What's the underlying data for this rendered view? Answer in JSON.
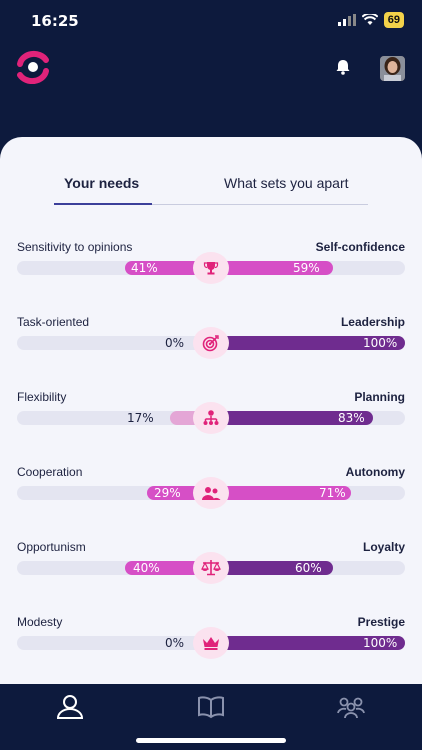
{
  "status": {
    "time": "16:25",
    "battery": "69"
  },
  "tabs": [
    {
      "label": "Your needs",
      "active": true
    },
    {
      "label": "What sets you apart",
      "active": false
    }
  ],
  "needs": [
    {
      "left_label": "Sensitivity to opinions",
      "right_label": "Self-confidence",
      "left_pct": "41%",
      "right_pct": "59%",
      "left_value": 41,
      "right_value": 59,
      "icon": "trophy-icon"
    },
    {
      "left_label": "Task-oriented",
      "right_label": "Leadership",
      "left_pct": "0%",
      "right_pct": "100%",
      "left_value": 0,
      "right_value": 100,
      "icon": "target-icon"
    },
    {
      "left_label": "Flexibility",
      "right_label": "Planning",
      "left_pct": "17%",
      "right_pct": "83%",
      "left_value": 17,
      "right_value": 83,
      "icon": "hierarchy-icon"
    },
    {
      "left_label": "Cooperation",
      "right_label": "Autonomy",
      "left_pct": "29%",
      "right_pct": "71%",
      "left_value": 29,
      "right_value": 71,
      "icon": "team-icon"
    },
    {
      "left_label": "Opportunism",
      "right_label": "Loyalty",
      "left_pct": "40%",
      "right_pct": "60%",
      "left_value": 40,
      "right_value": 60,
      "icon": "scales-icon"
    },
    {
      "left_label": "Modesty",
      "right_label": "Prestige",
      "left_pct": "0%",
      "right_pct": "100%",
      "left_value": 0,
      "right_value": 100,
      "icon": "crown-icon"
    }
  ],
  "colors": {
    "background": "#0d1a3d",
    "magenta": "#d64fc6",
    "purple": "#6f2c8f",
    "light_pink": "#e4a6d6",
    "icon_pink": "#e0237a",
    "track": "#e4e5f1"
  },
  "nav": [
    {
      "icon": "profile-icon",
      "active": true
    },
    {
      "icon": "book-icon",
      "active": false
    },
    {
      "icon": "group-icon",
      "active": false
    }
  ]
}
